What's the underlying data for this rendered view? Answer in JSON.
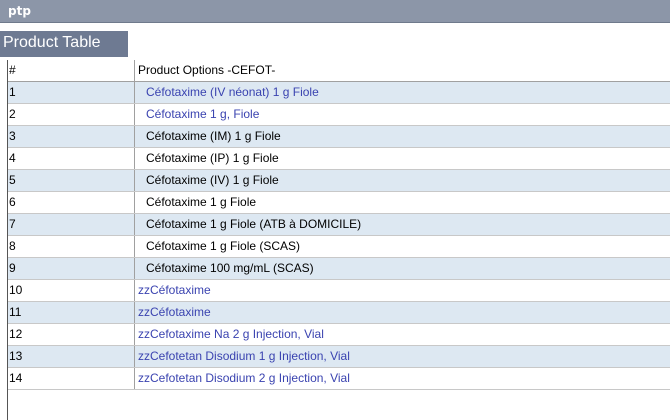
{
  "window": {
    "title": "ptp"
  },
  "panel": {
    "title": "Product Table"
  },
  "table": {
    "columns": [
      "#",
      "Product Options -CEFOT-"
    ],
    "rows": [
      {
        "num": "1",
        "option": "Céfotaxime (IV néonat) 1 g Fiole",
        "style": "link-indent"
      },
      {
        "num": "2",
        "option": "Céfotaxime 1 g, Fiole",
        "style": "link-indent"
      },
      {
        "num": "3",
        "option": "Céfotaxime (IM) 1 g Fiole",
        "style": "plain-indent"
      },
      {
        "num": "4",
        "option": "Céfotaxime (IP) 1 g Fiole",
        "style": "plain-indent"
      },
      {
        "num": "5",
        "option": "Céfotaxime (IV) 1 g Fiole",
        "style": "plain-indent"
      },
      {
        "num": "6",
        "option": "Céfotaxime 1 g Fiole",
        "style": "plain-indent"
      },
      {
        "num": "7",
        "option": "Céfotaxime 1 g Fiole (ATB à DOMICILE)",
        "style": "plain-indent"
      },
      {
        "num": "8",
        "option": "Céfotaxime 1 g Fiole (SCAS)",
        "style": "plain-indent"
      },
      {
        "num": "9",
        "option": "Céfotaxime 100 mg/mL (SCAS)",
        "style": "plain-indent"
      },
      {
        "num": "10",
        "option": "zzCéfotaxime",
        "style": "link"
      },
      {
        "num": "11",
        "option": "zzCéfotaxime",
        "style": "link"
      },
      {
        "num": "12",
        "option": "zzCefotaxime Na 2 g Injection, Vial",
        "style": "link"
      },
      {
        "num": "13",
        "option": "zzCefotetan Disodium 1 g Injection, Vial",
        "style": "link"
      },
      {
        "num": "14",
        "option": "zzCefotetan Disodium 2 g Injection, Vial",
        "style": "link"
      }
    ]
  },
  "colors": {
    "titlebar": "#8c96a8",
    "panel_header": "#6e7a92",
    "row_alt": "#dde8f2",
    "link_text": "#3a43b0"
  }
}
